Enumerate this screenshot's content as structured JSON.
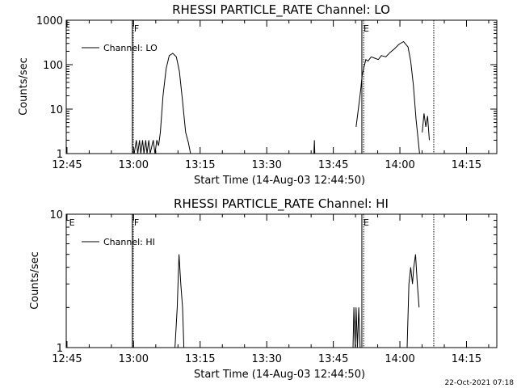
{
  "footer_timestamp": "22-Oct-2021 07:18",
  "chart_data": [
    {
      "type": "line",
      "title": "RHESSI PARTICLE_RATE Channel: LO",
      "xlabel": "Start Time (14-Aug-03 12:44:50)",
      "ylabel": "Counts/sec",
      "yscale": "log",
      "ylim": [
        1,
        1000
      ],
      "yticks": [
        1,
        10,
        100,
        1000
      ],
      "ytick_labels": [
        "1",
        "10",
        "100",
        "1000"
      ],
      "xlim_minutes": [
        0,
        97
      ],
      "xticks": [
        0.17,
        15.17,
        30.17,
        45.17,
        60.17,
        75.17,
        90.17
      ],
      "xtick_labels": [
        "12:45",
        "13:00",
        "13:15",
        "13:30",
        "13:45",
        "14:00",
        "14:15"
      ],
      "legend": "Channel: LO",
      "markers": [
        {
          "label": "F",
          "x": 14.9
        },
        {
          "label": "E",
          "x": 66.6
        }
      ],
      "dotted_lines": [
        15.1,
        67.0,
        82.8
      ],
      "corner_mark": "",
      "series": [
        {
          "name": "Channel: LO",
          "x": [
            15.3,
            15.8,
            16.1,
            16.5,
            16.8,
            17.2,
            17.5,
            17.9,
            18.2,
            18.6,
            18.9,
            19.3,
            19.6,
            20.0,
            20.4,
            20.8,
            21.2,
            21.8,
            22.5,
            23.2,
            24.0,
            24.8,
            25.5,
            26.2,
            26.9,
            27.5,
            28.0,
            28.4
          ],
          "y": [
            1,
            2,
            1,
            2,
            1,
            2,
            1,
            2,
            1,
            2,
            1,
            1.5,
            2,
            1,
            2,
            1.5,
            3,
            20,
            80,
            160,
            180,
            150,
            70,
            15,
            3,
            1.8,
            1,
            1
          ],
          "segments": [
            {
              "x": [
                55.8,
                55.9,
                56.0
              ],
              "y": [
                1,
                2,
                1
              ]
            },
            {
              "x": [
                65.3,
                65.8,
                66.3,
                66.7,
                67.1,
                67.5,
                68.0,
                68.7,
                69.5,
                70.3,
                71.0,
                72.0,
                73.0,
                74.0,
                75.0,
                76.0,
                77.0,
                77.6,
                78.2,
                78.8,
                79.3,
                79.6
              ],
              "y": [
                4,
                10,
                25,
                60,
                90,
                130,
                120,
                150,
                140,
                130,
                160,
                150,
                190,
                230,
                290,
                330,
                250,
                120,
                35,
                6,
                2,
                1
              ]
            },
            {
              "x": [
                80.2,
                80.6,
                81.0,
                81.4,
                81.8
              ],
              "y": [
                3,
                8,
                4,
                7,
                2
              ]
            }
          ]
        }
      ]
    },
    {
      "type": "line",
      "title": "RHESSI PARTICLE_RATE Channel: HI",
      "xlabel": "Start Time (14-Aug-03 12:44:50)",
      "ylabel": "Counts/sec",
      "yscale": "log",
      "ylim": [
        1,
        10
      ],
      "yticks": [
        1,
        10
      ],
      "ytick_labels": [
        "1",
        "10"
      ],
      "xlim_minutes": [
        0,
        97
      ],
      "xticks": [
        0.17,
        15.17,
        30.17,
        45.17,
        60.17,
        75.17,
        90.17
      ],
      "xtick_labels": [
        "12:45",
        "13:00",
        "13:15",
        "13:30",
        "13:45",
        "14:00",
        "14:15"
      ],
      "legend": "Channel: HI",
      "markers": [
        {
          "label": "E",
          "x": 0.3
        },
        {
          "label": "F",
          "x": 14.9
        },
        {
          "label": "E",
          "x": 66.6
        }
      ],
      "dotted_lines": [
        15.1,
        67.0,
        82.8
      ],
      "series": [
        {
          "name": "Channel: HI",
          "segments": [
            {
              "x": [
                24.5,
                25.0,
                25.4,
                25.8,
                26.2,
                26.5
              ],
              "y": [
                1,
                2,
                5,
                3,
                2,
                1
              ]
            },
            {
              "x": [
                64.6,
                64.8,
                65.1,
                65.3,
                65.6,
                65.9,
                66.2
              ],
              "y": [
                1,
                2,
                1,
                2,
                1,
                2,
                1
              ]
            },
            {
              "x": [
                76.8,
                77.2,
                77.6,
                78.0,
                78.3,
                78.7,
                79.1,
                79.5
              ],
              "y": [
                1,
                3,
                4,
                3,
                4,
                5,
                3,
                2
              ]
            }
          ]
        }
      ]
    }
  ]
}
